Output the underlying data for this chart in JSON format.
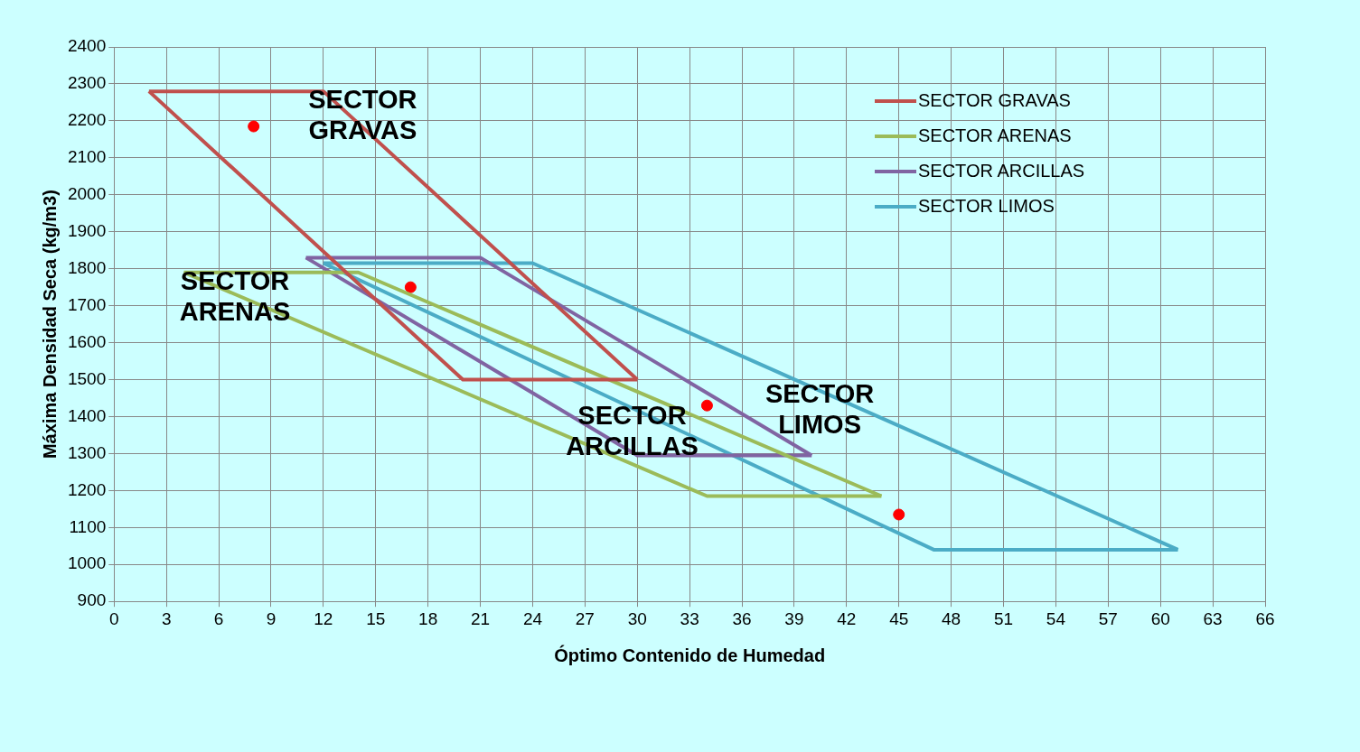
{
  "chart_data": {
    "type": "line",
    "xlabel": "Óptimo Contenido de Humedad",
    "ylabel": "Máxima Densidad Seca (kg/m3)",
    "xlim": [
      0,
      66
    ],
    "xticks": [
      0,
      3,
      6,
      9,
      12,
      15,
      18,
      21,
      24,
      27,
      30,
      33,
      36,
      39,
      42,
      45,
      48,
      51,
      54,
      57,
      60,
      63,
      66
    ],
    "ylim": [
      900,
      2400
    ],
    "yticks": [
      900,
      1000,
      1100,
      1200,
      1300,
      1400,
      1500,
      1600,
      1700,
      1800,
      1900,
      2000,
      2100,
      2200,
      2300,
      2400
    ],
    "grid": true,
    "legend": "top right",
    "marker": "none",
    "line_style": "solid",
    "series": [
      {
        "name": "SECTOR GRAVAS",
        "color": "#c0504d",
        "x": [
          2,
          12,
          30
        ],
        "values": [
          2280,
          2280,
          1500
        ]
      },
      {
        "color": "#c0504d",
        "x": [
          2,
          20,
          30
        ],
        "values": [
          2280,
          1500,
          1500
        ]
      },
      {
        "name": "SECTOR ARENAS",
        "color": "#9bbb59",
        "x": [
          4,
          14,
          44
        ],
        "values": [
          1790,
          1790,
          1185
        ]
      },
      {
        "color": "#9bbb59",
        "x": [
          4,
          34,
          44
        ],
        "values": [
          1790,
          1185,
          1185
        ]
      },
      {
        "name": "SECTOR ARCILLAS",
        "color": "#8064a2",
        "x": [
          11,
          21,
          40
        ],
        "values": [
          1830,
          1830,
          1295
        ]
      },
      {
        "color": "#8064a2",
        "x": [
          11,
          30,
          40
        ],
        "values": [
          1830,
          1295,
          1295
        ]
      },
      {
        "name": "SECTOR LIMOS",
        "color": "#4bacc6",
        "x": [
          12,
          24,
          61
        ],
        "values": [
          1815,
          1815,
          1040
        ]
      },
      {
        "color": "#4bacc6",
        "x": [
          12,
          47,
          61
        ],
        "values": [
          1815,
          1040,
          1040
        ]
      },
      {
        "type": "scatter",
        "marker": "circle",
        "color": "#ff0000",
        "x": [
          8,
          17,
          34,
          45
        ],
        "values": [
          2185,
          1750,
          1430,
          1135
        ]
      }
    ],
    "annotations": [
      "SECTOR GRAVAS",
      "SECTOR ARENAS",
      "SECTOR ARCILLAS",
      "SECTOR LIMOS"
    ]
  }
}
